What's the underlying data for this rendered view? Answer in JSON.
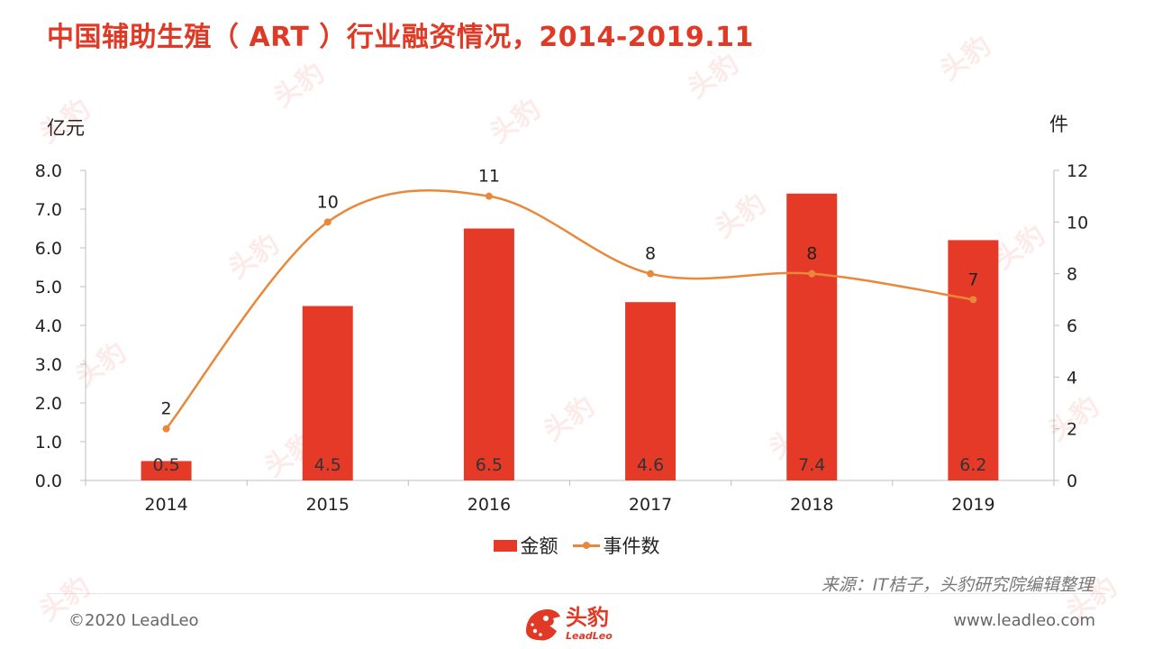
{
  "page": {
    "title": "中国辅助生殖（ ART ）行业融资情况，2014-2019.11",
    "source": "来源：IT桔子，头豹研究院编辑整理",
    "copyright": "©2020 LeadLeo",
    "website": "www.leadleo.com",
    "logo": {
      "name_cn": "头豹",
      "name_en": "LeadLeo",
      "watermark_text": "头豹"
    }
  },
  "colors": {
    "title": "#e03a26",
    "bar": "#e53a28",
    "line": "#e9883a",
    "axis": "#bfbfbf"
  },
  "chart_data": {
    "type": "bar",
    "categories": [
      "2014",
      "2015",
      "2016",
      "2017",
      "2018",
      "2019"
    ],
    "series": [
      {
        "name": "金额",
        "type": "bar",
        "axis": "left",
        "values": [
          0.5,
          4.5,
          6.5,
          4.6,
          7.4,
          6.2
        ]
      },
      {
        "name": "事件数",
        "type": "line",
        "smooth": true,
        "axis": "right",
        "values": [
          2,
          10,
          11,
          8,
          8,
          7
        ]
      }
    ],
    "y_left": {
      "unit": "亿元",
      "ylim": [
        0,
        8
      ],
      "ticks": [
        "0.0",
        "1.0",
        "2.0",
        "3.0",
        "4.0",
        "5.0",
        "6.0",
        "7.0",
        "8.0"
      ]
    },
    "y_right": {
      "unit": "件",
      "ylim": [
        0,
        12
      ],
      "ticks": [
        "0",
        "2",
        "4",
        "6",
        "8",
        "10",
        "12"
      ]
    },
    "grid": false,
    "legend_position": "bottom"
  }
}
